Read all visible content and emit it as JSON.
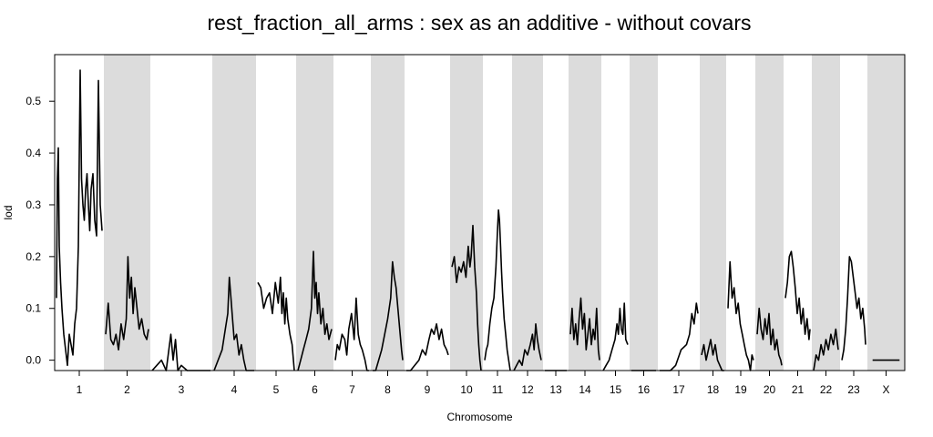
{
  "chart_data": {
    "type": "line",
    "title": "rest_fraction_all_arms : sex as an additive - without covars",
    "xlabel": "Chromosome",
    "ylabel": "lod",
    "ylim": [
      -0.02,
      0.59
    ],
    "y_ticks": [
      0.0,
      0.1,
      0.2,
      0.3,
      0.4,
      0.5
    ],
    "y_tick_labels": [
      "0.0",
      "0.1",
      "0.2",
      "0.3",
      "0.4",
      "0.5"
    ],
    "grid": false,
    "band_color": "#dcdcdc",
    "line_color": "#000000",
    "chromosomes": [
      {
        "label": "1",
        "shaded": false,
        "x": [
          0,
          0.02,
          0.04,
          0.06,
          0.09,
          0.12,
          0.16,
          0.2,
          0.24,
          0.28,
          0.32,
          0.36,
          0.4,
          0.44,
          0.48,
          0.52,
          0.55,
          0.58,
          0.61,
          0.64,
          0.67,
          0.7,
          0.73,
          0.76,
          0.8,
          0.84,
          0.88,
          0.92,
          0.96,
          1
        ],
        "y": [
          0.12,
          0.35,
          0.41,
          0.22,
          0.15,
          0.1,
          0.05,
          0.02,
          -0.01,
          0.05,
          0.03,
          0.01,
          0.07,
          0.1,
          0.22,
          0.56,
          0.35,
          0.3,
          0.27,
          0.33,
          0.36,
          0.3,
          0.25,
          0.33,
          0.36,
          0.27,
          0.24,
          0.54,
          0.3,
          0.25
        ]
      },
      {
        "label": "2",
        "shaded": true,
        "x": [
          0,
          0.06,
          0.12,
          0.18,
          0.24,
          0.3,
          0.36,
          0.42,
          0.48,
          0.52,
          0.56,
          0.6,
          0.64,
          0.68,
          0.72,
          0.78,
          0.84,
          0.9,
          0.96,
          1
        ],
        "y": [
          0.05,
          0.11,
          0.04,
          0.03,
          0.05,
          0.02,
          0.07,
          0.04,
          0.08,
          0.2,
          0.12,
          0.16,
          0.09,
          0.14,
          0.11,
          0.06,
          0.08,
          0.05,
          0.04,
          0.06
        ]
      },
      {
        "label": "3",
        "shaded": false,
        "x": [
          0,
          0.08,
          0.16,
          0.24,
          0.32,
          0.36,
          0.4,
          0.44,
          0.5,
          0.6,
          0.7,
          0.8,
          0.9,
          1
        ],
        "y": [
          -0.02,
          -0.01,
          0.0,
          -0.02,
          0.05,
          0.0,
          0.04,
          -0.02,
          -0.01,
          -0.02,
          -0.02,
          -0.02,
          -0.02,
          -0.02
        ]
      },
      {
        "label": "4",
        "shaded": true,
        "x": [
          0,
          0.1,
          0.2,
          0.28,
          0.34,
          0.38,
          0.42,
          0.46,
          0.5,
          0.56,
          0.62,
          0.68,
          0.74,
          0.8,
          0.88,
          1
        ],
        "y": [
          -0.02,
          0.0,
          0.02,
          0.06,
          0.09,
          0.16,
          0.12,
          0.08,
          0.04,
          0.05,
          0.01,
          0.03,
          0.0,
          -0.02,
          -0.02,
          -0.02
        ]
      },
      {
        "label": "5",
        "shaded": false,
        "x": [
          0,
          0.08,
          0.16,
          0.24,
          0.32,
          0.4,
          0.48,
          0.56,
          0.62,
          0.66,
          0.7,
          0.74,
          0.78,
          0.82,
          0.88,
          0.94,
          1
        ],
        "y": [
          0.15,
          0.14,
          0.1,
          0.12,
          0.13,
          0.09,
          0.15,
          0.11,
          0.16,
          0.09,
          0.13,
          0.07,
          0.12,
          0.08,
          0.05,
          0.03,
          -0.02
        ]
      },
      {
        "label": "6",
        "shaded": true,
        "x": [
          0,
          0.08,
          0.16,
          0.24,
          0.32,
          0.4,
          0.46,
          0.5,
          0.54,
          0.58,
          0.62,
          0.68,
          0.74,
          0.8,
          0.86,
          0.92,
          1
        ],
        "y": [
          -0.02,
          0.0,
          0.02,
          0.04,
          0.06,
          0.1,
          0.21,
          0.12,
          0.15,
          0.09,
          0.13,
          0.07,
          0.1,
          0.05,
          0.07,
          0.04,
          0.06
        ]
      },
      {
        "label": "7",
        "shaded": false,
        "x": [
          0,
          0.06,
          0.12,
          0.2,
          0.28,
          0.34,
          0.4,
          0.48,
          0.56,
          0.62,
          0.68,
          0.74,
          0.8,
          0.88,
          0.94,
          1
        ],
        "y": [
          0.0,
          0.03,
          0.02,
          0.05,
          0.04,
          0.01,
          0.06,
          0.09,
          0.04,
          0.12,
          0.05,
          0.03,
          0.02,
          0.0,
          -0.02,
          -0.02
        ]
      },
      {
        "label": "8",
        "shaded": true,
        "x": [
          0,
          0.1,
          0.2,
          0.3,
          0.4,
          0.5,
          0.6,
          0.66,
          0.72,
          0.78,
          0.84,
          0.9,
          0.96,
          1
        ],
        "y": [
          -0.02,
          -0.02,
          0.0,
          0.02,
          0.05,
          0.08,
          0.12,
          0.19,
          0.16,
          0.14,
          0.1,
          0.06,
          0.02,
          0.0
        ]
      },
      {
        "label": "9",
        "shaded": false,
        "x": [
          0,
          0.1,
          0.2,
          0.3,
          0.38,
          0.46,
          0.54,
          0.6,
          0.66,
          0.72,
          0.78,
          0.84,
          0.9,
          0.96,
          1
        ],
        "y": [
          -0.02,
          -0.02,
          -0.01,
          0.0,
          0.02,
          0.01,
          0.04,
          0.06,
          0.05,
          0.07,
          0.04,
          0.06,
          0.03,
          0.02,
          0.01
        ]
      },
      {
        "label": "10",
        "shaded": true,
        "x": [
          0,
          0.08,
          0.16,
          0.24,
          0.32,
          0.4,
          0.48,
          0.56,
          0.62,
          0.66,
          0.72,
          0.78,
          0.84,
          0.88,
          0.92,
          0.96,
          1
        ],
        "y": [
          0.18,
          0.2,
          0.15,
          0.18,
          0.17,
          0.19,
          0.16,
          0.22,
          0.18,
          0.2,
          0.26,
          0.18,
          0.13,
          0.07,
          0.03,
          0.0,
          -0.02
        ]
      },
      {
        "label": "11",
        "shaded": false,
        "x": [
          0,
          0.06,
          0.12,
          0.2,
          0.28,
          0.36,
          0.44,
          0.5,
          0.54,
          0.58,
          0.62,
          0.66,
          0.7,
          0.76,
          0.82,
          0.88,
          0.94,
          1
        ],
        "y": [
          0.0,
          0.02,
          0.03,
          0.07,
          0.1,
          0.12,
          0.18,
          0.25,
          0.29,
          0.27,
          0.22,
          0.17,
          0.13,
          0.08,
          0.05,
          0.02,
          0.0,
          -0.02
        ]
      },
      {
        "label": "12",
        "shaded": true,
        "x": [
          0,
          0.1,
          0.2,
          0.3,
          0.4,
          0.5,
          0.6,
          0.68,
          0.74,
          0.8,
          0.86,
          0.92,
          1
        ],
        "y": [
          -0.02,
          -0.01,
          0.0,
          -0.01,
          0.02,
          0.01,
          0.03,
          0.05,
          0.02,
          0.07,
          0.04,
          0.02,
          0.0
        ]
      },
      {
        "label": "13",
        "shaded": false,
        "x": [
          0,
          0.15,
          0.3,
          0.45,
          0.6,
          0.75,
          0.9,
          1
        ],
        "y": [
          -0.02,
          -0.02,
          -0.02,
          -0.02,
          -0.02,
          -0.02,
          -0.02,
          -0.02
        ]
      },
      {
        "label": "14",
        "shaded": true,
        "x": [
          0,
          0.06,
          0.12,
          0.18,
          0.24,
          0.3,
          0.36,
          0.42,
          0.48,
          0.54,
          0.6,
          0.66,
          0.72,
          0.78,
          0.84,
          0.9,
          0.96,
          1
        ],
        "y": [
          0.05,
          0.1,
          0.04,
          0.07,
          0.03,
          0.08,
          0.12,
          0.06,
          0.09,
          0.02,
          0.05,
          0.08,
          0.03,
          0.06,
          0.04,
          0.1,
          0.02,
          0.0
        ]
      },
      {
        "label": "15",
        "shaded": false,
        "x": [
          0,
          0.12,
          0.24,
          0.36,
          0.48,
          0.56,
          0.62,
          0.68,
          0.74,
          0.8,
          0.86,
          0.92,
          1
        ],
        "y": [
          -0.02,
          -0.01,
          0.0,
          0.02,
          0.04,
          0.07,
          0.05,
          0.1,
          0.06,
          0.05,
          0.11,
          0.04,
          0.03
        ]
      },
      {
        "label": "16",
        "shaded": true,
        "x": [
          0,
          0.15,
          0.3,
          0.45,
          0.6,
          0.75,
          0.9,
          1
        ],
        "y": [
          -0.02,
          -0.02,
          -0.02,
          -0.02,
          -0.02,
          -0.02,
          -0.02,
          -0.02
        ]
      },
      {
        "label": "17",
        "shaded": false,
        "x": [
          0,
          0.14,
          0.28,
          0.42,
          0.56,
          0.7,
          0.78,
          0.84,
          0.9,
          0.96,
          1
        ],
        "y": [
          -0.02,
          -0.02,
          -0.02,
          -0.01,
          0.02,
          0.03,
          0.05,
          0.09,
          0.07,
          0.11,
          0.09
        ]
      },
      {
        "label": "18",
        "shaded": true,
        "x": [
          0,
          0.1,
          0.2,
          0.3,
          0.4,
          0.5,
          0.6,
          0.7,
          0.8,
          0.9,
          1
        ],
        "y": [
          0.01,
          0.03,
          0.0,
          0.02,
          0.04,
          0.01,
          0.03,
          0.0,
          -0.01,
          -0.02,
          -0.02
        ]
      },
      {
        "label": "19",
        "shaded": false,
        "x": [
          0,
          0.08,
          0.16,
          0.24,
          0.32,
          0.4,
          0.48,
          0.56,
          0.64,
          0.72,
          0.8,
          0.88,
          0.94,
          1
        ],
        "y": [
          0.1,
          0.19,
          0.12,
          0.14,
          0.09,
          0.11,
          0.07,
          0.05,
          0.03,
          0.01,
          0.0,
          -0.02,
          0.01,
          0.0
        ]
      },
      {
        "label": "20",
        "shaded": true,
        "x": [
          0,
          0.08,
          0.16,
          0.24,
          0.32,
          0.4,
          0.48,
          0.56,
          0.64,
          0.72,
          0.8,
          0.88,
          0.96,
          1
        ],
        "y": [
          0.05,
          0.1,
          0.06,
          0.04,
          0.08,
          0.05,
          0.09,
          0.03,
          0.06,
          0.02,
          0.04,
          0.01,
          0.0,
          -0.01
        ]
      },
      {
        "label": "21",
        "shaded": false,
        "x": [
          0,
          0.08,
          0.16,
          0.24,
          0.32,
          0.4,
          0.48,
          0.56,
          0.64,
          0.72,
          0.8,
          0.88,
          0.96,
          1
        ],
        "y": [
          0.12,
          0.15,
          0.2,
          0.21,
          0.18,
          0.14,
          0.09,
          0.12,
          0.07,
          0.1,
          0.05,
          0.08,
          0.04,
          0.06
        ]
      },
      {
        "label": "22",
        "shaded": true,
        "x": [
          0,
          0.1,
          0.2,
          0.3,
          0.4,
          0.5,
          0.6,
          0.7,
          0.8,
          0.9,
          1
        ],
        "y": [
          -0.02,
          0.01,
          0.0,
          0.03,
          0.01,
          0.04,
          0.02,
          0.05,
          0.03,
          0.06,
          0.02
        ]
      },
      {
        "label": "23",
        "shaded": false,
        "x": [
          0,
          0.08,
          0.16,
          0.24,
          0.32,
          0.4,
          0.48,
          0.56,
          0.64,
          0.72,
          0.8,
          0.88,
          0.96,
          1
        ],
        "y": [
          0.0,
          0.02,
          0.06,
          0.12,
          0.2,
          0.19,
          0.16,
          0.13,
          0.1,
          0.12,
          0.08,
          0.1,
          0.06,
          0.03
        ]
      },
      {
        "label": "X",
        "shaded": true,
        "x": [
          0.1,
          0.9
        ],
        "y": [
          0.0,
          0.0
        ]
      }
    ]
  }
}
